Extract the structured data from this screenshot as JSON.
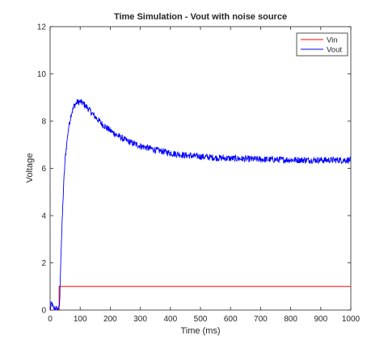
{
  "chart_data": {
    "type": "line",
    "title": "Time Simulation - Vout with noise source",
    "xlabel": "Time (ms)",
    "ylabel": "Voltage",
    "xlim": [
      0,
      1000
    ],
    "ylim": [
      0,
      12
    ],
    "xticks": [
      0,
      100,
      200,
      300,
      400,
      500,
      600,
      700,
      800,
      900,
      1000
    ],
    "yticks": [
      0,
      2,
      4,
      6,
      8,
      10,
      12
    ],
    "grid": false,
    "legend_position": "top-right",
    "series": [
      {
        "name": "Vin",
        "color": "#ff0000",
        "noisy": false,
        "x": [
          0,
          30,
          30,
          1000
        ],
        "y": [
          0,
          0,
          1,
          1
        ]
      },
      {
        "name": "Vout",
        "color": "#0000ff",
        "noisy": true,
        "x": [
          0,
          5,
          10,
          20,
          30,
          32,
          35,
          40,
          45,
          50,
          60,
          70,
          80,
          90,
          100,
          110,
          120,
          130,
          140,
          150,
          175,
          200,
          225,
          250,
          275,
          300,
          350,
          400,
          450,
          500,
          550,
          600,
          650,
          700,
          750,
          800,
          850,
          900,
          950,
          1000
        ],
        "y": [
          0,
          0.3,
          0.1,
          0.05,
          0.05,
          0.4,
          2.0,
          3.7,
          5.3,
          6.4,
          7.6,
          8.3,
          8.65,
          8.8,
          8.82,
          8.75,
          8.62,
          8.48,
          8.32,
          8.18,
          7.85,
          7.6,
          7.38,
          7.2,
          7.06,
          6.95,
          6.78,
          6.65,
          6.55,
          6.5,
          6.45,
          6.42,
          6.4,
          6.38,
          6.37,
          6.36,
          6.35,
          6.35,
          6.35,
          6.35
        ]
      }
    ]
  }
}
